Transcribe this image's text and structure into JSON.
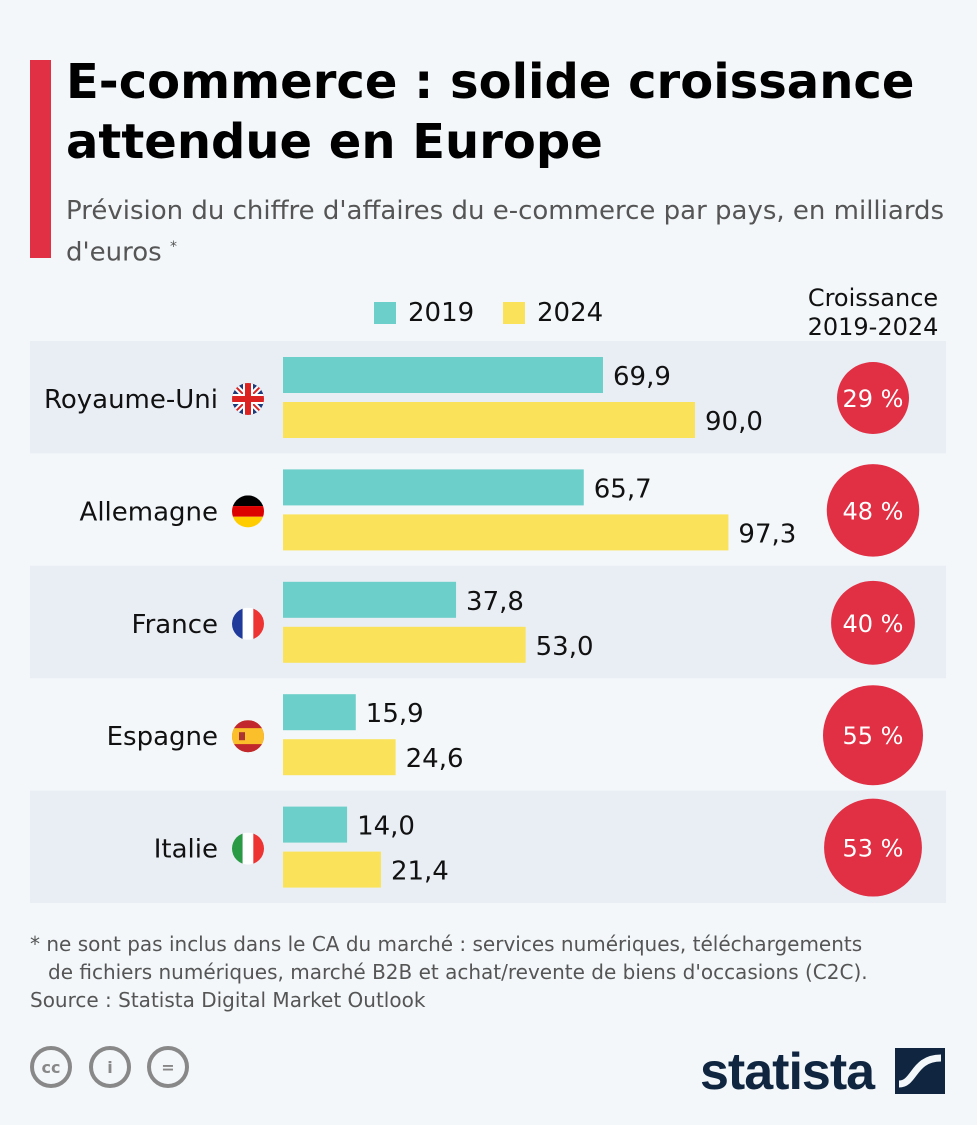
{
  "header": {
    "title": "E-commerce : solide croissance attendue en Europe",
    "subtitle": "Prévision du chiffre d'affaires du e-commerce par pays, en milliards d'euros",
    "subtitle_mark": "*"
  },
  "colors": {
    "accent": "#e12f44",
    "s2019": "#6ccfc9",
    "s2024": "#fae35a",
    "band": "#e9eef5",
    "circle": "#e12f44"
  },
  "chart_data": {
    "type": "bar",
    "orientation": "horizontal",
    "categories": [
      "Royaume-Uni",
      "Allemagne",
      "France",
      "Espagne",
      "Italie"
    ],
    "series": [
      {
        "name": "2019",
        "values": [
          69.9,
          65.7,
          37.8,
          15.9,
          14.0
        ],
        "labels": [
          "69,9",
          "65,7",
          "37,8",
          "15,9",
          "14,0"
        ]
      },
      {
        "name": "2024",
        "values": [
          90.0,
          97.3,
          53.0,
          24.6,
          21.4
        ],
        "labels": [
          "90,0",
          "97,3",
          "53,0",
          "24,6",
          "21,4"
        ]
      }
    ],
    "growth_header": [
      "Croissance",
      "2019-2024"
    ],
    "growth": [
      29,
      48,
      40,
      55,
      53
    ],
    "growth_labels": [
      "29 %",
      "48 %",
      "40 %",
      "55 %",
      "53 %"
    ],
    "flags": [
      "uk-flag-icon",
      "germany-flag-icon",
      "france-flag-icon",
      "spain-flag-icon",
      "italy-flag-icon"
    ],
    "legend": "top",
    "grid": false
  },
  "footer": {
    "note1": "* ne sont pas inclus dans le CA du marché : services numériques, téléchargements",
    "note2": "de fichiers numériques, marché B2B et achat/revente de biens d'occasions (C2C).",
    "source": "Source : Statista Digital Market Outlook",
    "logo": "statista",
    "cc": [
      "cc-icon",
      "attribution-icon",
      "no-derivatives-icon"
    ]
  }
}
